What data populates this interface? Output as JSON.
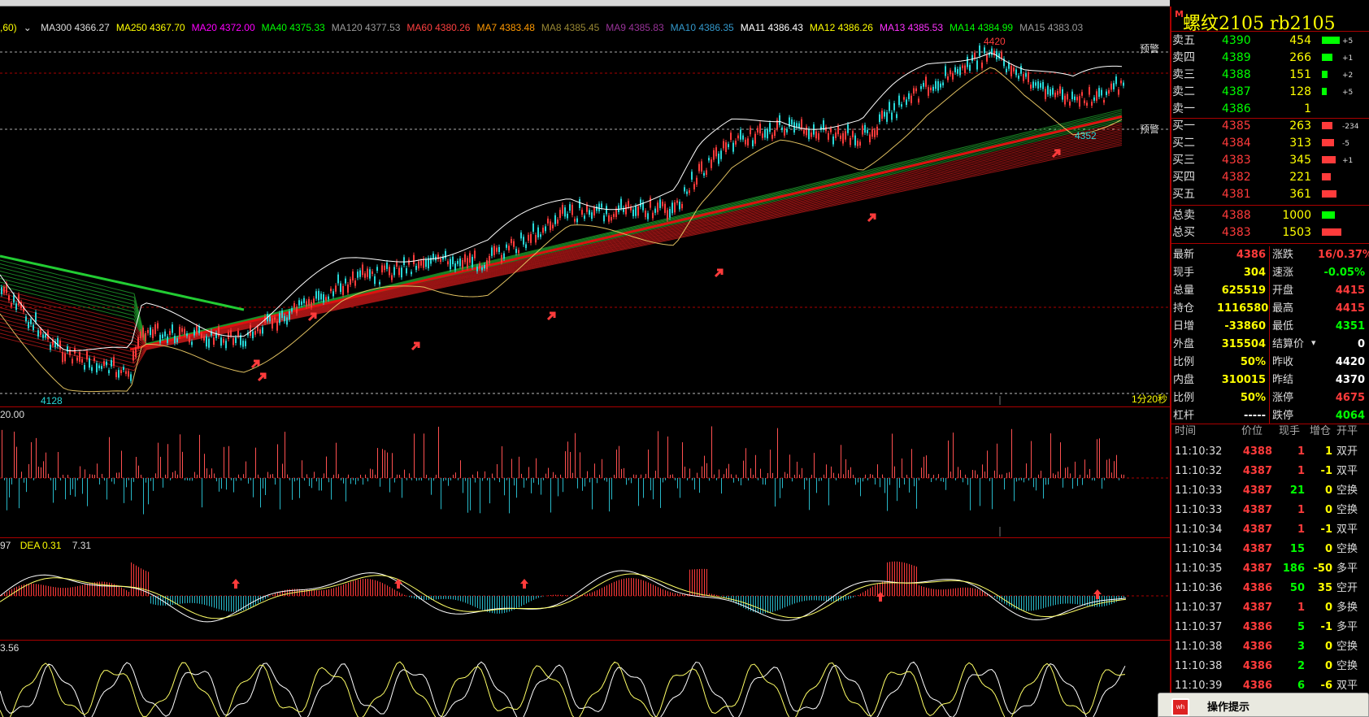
{
  "colors": {
    "up": "#ff3b3b",
    "down": "#00ffff",
    "bid": "#ff3b3b",
    "ask": "#00ff00",
    "label": "#dddddd",
    "yellow": "#ffff00"
  },
  "legend": {
    "period_prefix": ",60)",
    "items": [
      {
        "text": "MA300 4366.27",
        "color": "#dddddd"
      },
      {
        "text": "MA250 4367.70",
        "color": "#ffff00"
      },
      {
        "text": "MA20 4372.00",
        "color": "#ff00ff"
      },
      {
        "text": "MA40 4375.33",
        "color": "#00ff00"
      },
      {
        "text": "MA120 4377.53",
        "color": "#9a9a9a"
      },
      {
        "text": "MA60 4380.26",
        "color": "#ff4040"
      },
      {
        "text": "MA7 4383.48",
        "color": "#ff9900"
      },
      {
        "text": "MA8 4385.45",
        "color": "#998833"
      },
      {
        "text": "MA9 4385.83",
        "color": "#993399"
      },
      {
        "text": "MA10 4386.35",
        "color": "#3399cc"
      },
      {
        "text": "MA11 4386.43",
        "color": "#ffffff"
      },
      {
        "text": "MA12 4386.26",
        "color": "#ffff00"
      },
      {
        "text": "MA13 4385.53",
        "color": "#ff33ff"
      },
      {
        "text": "MA14 4384.99",
        "color": "#00ff00"
      },
      {
        "text": "MA15 4383.03",
        "color": "#9a9a9a"
      }
    ]
  },
  "price_chart": {
    "high_label": "4420",
    "low_label": "4128",
    "local_low_label": "4352",
    "alert_label": "预警",
    "period_label": "1分20秒"
  },
  "panels": {
    "volume_label": "20.00",
    "macd_label_a": "97",
    "macd_label_b": "DEA 0.31",
    "macd_label_c": "7.31",
    "kdj_label": "3.56"
  },
  "instrument": {
    "name": "螺纹2105  rb2105",
    "icon": "M"
  },
  "orderbook": {
    "asks": [
      {
        "label": "卖五",
        "price": "4390",
        "vol": "454",
        "chg": "+5",
        "bar": 22
      },
      {
        "label": "卖四",
        "price": "4389",
        "vol": "266",
        "chg": "+1",
        "bar": 13
      },
      {
        "label": "卖三",
        "price": "4388",
        "vol": "151",
        "chg": "+2",
        "bar": 7
      },
      {
        "label": "卖二",
        "price": "4387",
        "vol": "128",
        "chg": "+5",
        "bar": 6
      },
      {
        "label": "卖一",
        "price": "4386",
        "vol": "1",
        "chg": "",
        "bar": 0
      }
    ],
    "bids": [
      {
        "label": "买一",
        "price": "4385",
        "vol": "263",
        "chg": "-234",
        "bar": 13
      },
      {
        "label": "买二",
        "price": "4384",
        "vol": "313",
        "chg": "-5",
        "bar": 15
      },
      {
        "label": "买三",
        "price": "4383",
        "vol": "345",
        "chg": "+1",
        "bar": 17
      },
      {
        "label": "买四",
        "price": "4382",
        "vol": "221",
        "chg": "",
        "bar": 11
      },
      {
        "label": "买五",
        "price": "4381",
        "vol": "361",
        "chg": "",
        "bar": 18
      }
    ],
    "totals": [
      {
        "label": "总卖",
        "price": "4388",
        "vol": "1000",
        "color": "#00ff00",
        "bar": 16
      },
      {
        "label": "总买",
        "price": "4383",
        "vol": "1503",
        "color": "#ff3b3b",
        "bar": 24
      }
    ]
  },
  "quote": {
    "left": [
      {
        "label": "最新",
        "value": "4386",
        "color": "#ff3b3b"
      },
      {
        "label": "现手",
        "value": "304",
        "color": "#ffff00"
      },
      {
        "label": "总量",
        "value": "625519",
        "color": "#ffff00"
      },
      {
        "label": "持仓",
        "value": "1116580",
        "color": "#ffff00"
      },
      {
        "label": "日增",
        "value": "-33860",
        "color": "#ffff00"
      },
      {
        "label": "外盘",
        "value": "315504",
        "color": "#ffff00"
      },
      {
        "label": "比例",
        "value": "50%",
        "color": "#ffff00"
      },
      {
        "label": "内盘",
        "value": "310015",
        "color": "#ffff00"
      },
      {
        "label": "比例",
        "value": "50%",
        "color": "#ffff00"
      },
      {
        "label": "杠杆",
        "value": "-----",
        "color": "#ffffff"
      }
    ],
    "right": [
      {
        "label": "涨跌",
        "value": "16/0.37%",
        "color": "#ff3b3b"
      },
      {
        "label": "速涨",
        "value": "-0.05%",
        "color": "#00ff00"
      },
      {
        "label": "开盘",
        "value": "4415",
        "color": "#ff3b3b"
      },
      {
        "label": "最高",
        "value": "4415",
        "color": "#ff3b3b"
      },
      {
        "label": "最低",
        "value": "4351",
        "color": "#00ff00"
      },
      {
        "label": "结算价",
        "value": "0",
        "color": "#ffffff"
      },
      {
        "label": "昨收",
        "value": "4420",
        "color": "#ffffff"
      },
      {
        "label": "昨结",
        "value": "4370",
        "color": "#ffffff"
      },
      {
        "label": "涨停",
        "value": "4675",
        "color": "#ff3b3b"
      },
      {
        "label": "跌停",
        "value": "4064",
        "color": "#00ff00"
      }
    ]
  },
  "trades": {
    "headers": [
      "时间",
      "价位",
      "现手",
      "增仓",
      "开平"
    ],
    "rows": [
      {
        "time": "11:10:32",
        "price": "4388",
        "qty": "1",
        "oi": "1",
        "type": "双开",
        "qc": "#ff3b3b"
      },
      {
        "time": "11:10:32",
        "price": "4387",
        "qty": "1",
        "oi": "-1",
        "type": "双平",
        "qc": "#ff3b3b"
      },
      {
        "time": "11:10:33",
        "price": "4387",
        "qty": "21",
        "oi": "0",
        "type": "空换",
        "qc": "#00ff00"
      },
      {
        "time": "11:10:33",
        "price": "4387",
        "qty": "1",
        "oi": "0",
        "type": "空换",
        "qc": "#ff3b3b"
      },
      {
        "time": "11:10:34",
        "price": "4387",
        "qty": "1",
        "oi": "-1",
        "type": "双平",
        "qc": "#ff3b3b"
      },
      {
        "time": "11:10:34",
        "price": "4387",
        "qty": "15",
        "oi": "0",
        "type": "空换",
        "qc": "#00ff00"
      },
      {
        "time": "11:10:35",
        "price": "4387",
        "qty": "186",
        "oi": "-50",
        "type": "多平",
        "qc": "#00ff00"
      },
      {
        "time": "11:10:36",
        "price": "4386",
        "qty": "50",
        "oi": "35",
        "type": "空开",
        "qc": "#00ff00"
      },
      {
        "time": "11:10:37",
        "price": "4387",
        "qty": "1",
        "oi": "0",
        "type": "多换",
        "qc": "#ff3b3b"
      },
      {
        "time": "11:10:37",
        "price": "4386",
        "qty": "5",
        "oi": "-1",
        "type": "多平",
        "qc": "#00ff00"
      },
      {
        "time": "11:10:38",
        "price": "4386",
        "qty": "3",
        "oi": "0",
        "type": "空换",
        "qc": "#00ff00"
      },
      {
        "time": "11:10:38",
        "price": "4386",
        "qty": "2",
        "oi": "0",
        "type": "空换",
        "qc": "#00ff00"
      },
      {
        "time": "11:10:39",
        "price": "4386",
        "qty": "6",
        "oi": "-6",
        "type": "双平",
        "qc": "#00ff00"
      }
    ]
  },
  "tip": {
    "title": "操作提示",
    "logo": "wh"
  }
}
